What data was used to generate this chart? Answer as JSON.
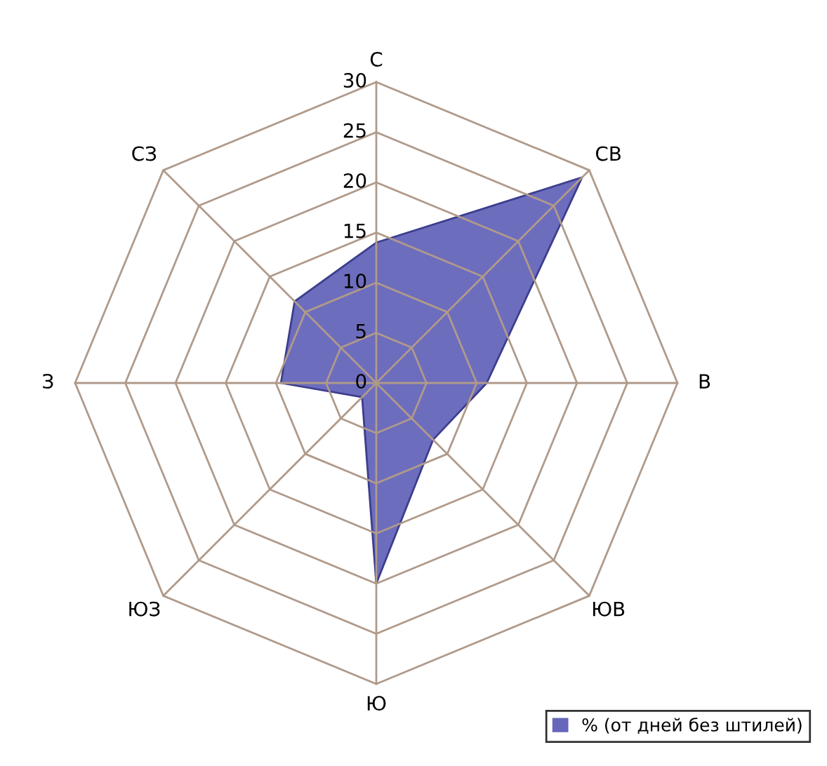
{
  "chart_data": {
    "type": "radar",
    "categories": [
      "С",
      "СВ",
      "В",
      "ЮВ",
      "Ю",
      "ЮЗ",
      "З",
      "СЗ"
    ],
    "series": [
      {
        "name": "% (от дней без штилей)",
        "color": "#6666bb",
        "values": [
          14,
          29,
          11,
          8,
          20,
          2,
          9.5,
          11.5
        ]
      }
    ],
    "ylim": [
      0,
      30
    ],
    "yticks": [
      0,
      5,
      10,
      15,
      20,
      25,
      30
    ],
    "grid": true,
    "legend": "bottom right"
  }
}
